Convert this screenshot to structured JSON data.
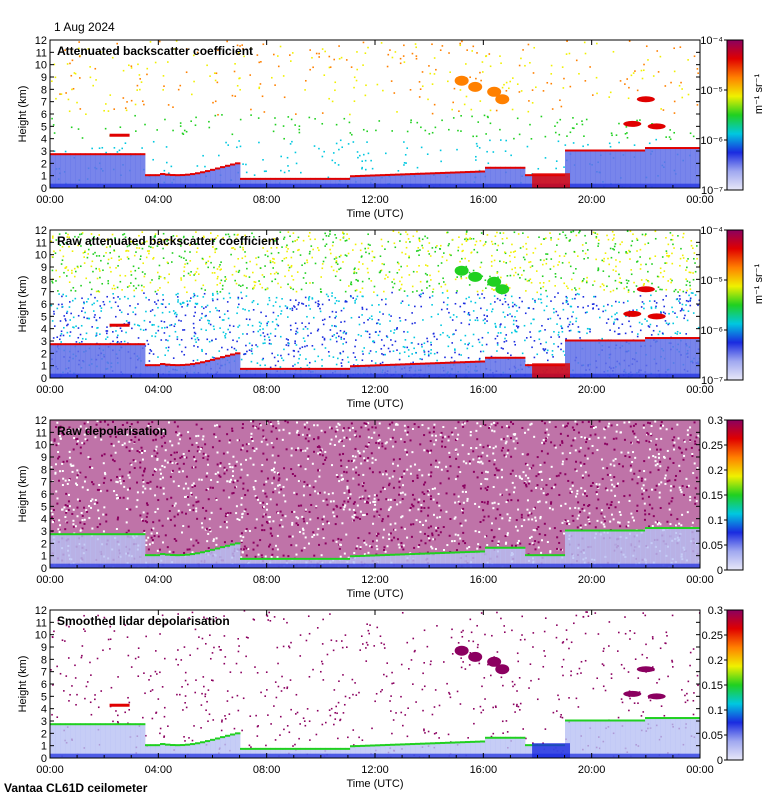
{
  "date_label": "1 Aug 2024",
  "instrument_label": "Vantaa CL61D ceilometer",
  "colors": {
    "low_end": "#e8e8f8",
    "blue": "#1a2be0",
    "cyan": "#00c8e0",
    "green": "#20d020",
    "yellow": "#f0f000",
    "orange": "#ff8000",
    "red": "#e00000",
    "purple": "#8b0060"
  },
  "chart_data": [
    {
      "type": "heatmap",
      "title": "Attenuated backscatter coefficient",
      "xlabel": "Time (UTC)",
      "ylabel": "Height (km)",
      "x_ticks": [
        "00:00",
        "04:00",
        "08:00",
        "12:00",
        "16:00",
        "20:00",
        "00:00"
      ],
      "xlim_hours": [
        0,
        24
      ],
      "y_ticks": [
        "0",
        "1",
        "2",
        "3",
        "4",
        "5",
        "6",
        "7",
        "8",
        "9",
        "10",
        "11",
        "12"
      ],
      "ylim": [
        0,
        12
      ],
      "colorbar": {
        "scale": "log",
        "range": [
          1e-07,
          0.0001
        ],
        "unit_label": "m⁻¹ sr⁻¹",
        "tick_labels": [
          "10⁻⁴",
          "10⁻⁵",
          "10⁻⁶",
          "10⁻⁷"
        ]
      }
    },
    {
      "type": "heatmap",
      "title": "Raw attenuated backscatter coefficient",
      "xlabel": "Time (UTC)",
      "ylabel": "Height (km)",
      "x_ticks": [
        "00:00",
        "04:00",
        "08:00",
        "12:00",
        "16:00",
        "20:00",
        "00:00"
      ],
      "xlim_hours": [
        0,
        24
      ],
      "y_ticks": [
        "0",
        "1",
        "2",
        "3",
        "4",
        "5",
        "6",
        "7",
        "8",
        "9",
        "10",
        "11",
        "12"
      ],
      "ylim": [
        0,
        12
      ],
      "colorbar": {
        "scale": "log",
        "range": [
          1e-07,
          0.0001
        ],
        "unit_label": "m⁻¹ sr⁻¹",
        "tick_labels": [
          "10⁻⁴",
          "10⁻⁵",
          "10⁻⁶",
          "10⁻⁷"
        ]
      }
    },
    {
      "type": "heatmap",
      "title": "Raw depolarisation",
      "xlabel": "Time (UTC)",
      "ylabel": "Height (km)",
      "x_ticks": [
        "00:00",
        "04:00",
        "08:00",
        "12:00",
        "16:00",
        "20:00",
        "00:00"
      ],
      "xlim_hours": [
        0,
        24
      ],
      "y_ticks": [
        "0",
        "1",
        "2",
        "3",
        "4",
        "5",
        "6",
        "7",
        "8",
        "9",
        "10",
        "11",
        "12"
      ],
      "ylim": [
        0,
        12
      ],
      "colorbar": {
        "scale": "linear",
        "range": [
          0,
          0.3
        ],
        "unit_label": "",
        "tick_labels": [
          "0.3",
          "0.25",
          "0.2",
          "0.15",
          "0.1",
          "0.05",
          "0"
        ]
      }
    },
    {
      "type": "heatmap",
      "title": "Smoothed lidar depolarisation",
      "xlabel": "Time (UTC)",
      "ylabel": "Height (km)",
      "x_ticks": [
        "00:00",
        "04:00",
        "08:00",
        "12:00",
        "16:00",
        "20:00",
        "00:00"
      ],
      "xlim_hours": [
        0,
        24
      ],
      "y_ticks": [
        "0",
        "1",
        "2",
        "3",
        "4",
        "5",
        "6",
        "7",
        "8",
        "9",
        "10",
        "11",
        "12"
      ],
      "ylim": [
        0,
        12
      ],
      "colorbar": {
        "scale": "linear",
        "range": [
          0,
          0.3
        ],
        "unit_label": "",
        "tick_labels": [
          "0.3",
          "0.25",
          "0.2",
          "0.15",
          "0.1",
          "0.05",
          "0"
        ]
      }
    }
  ]
}
